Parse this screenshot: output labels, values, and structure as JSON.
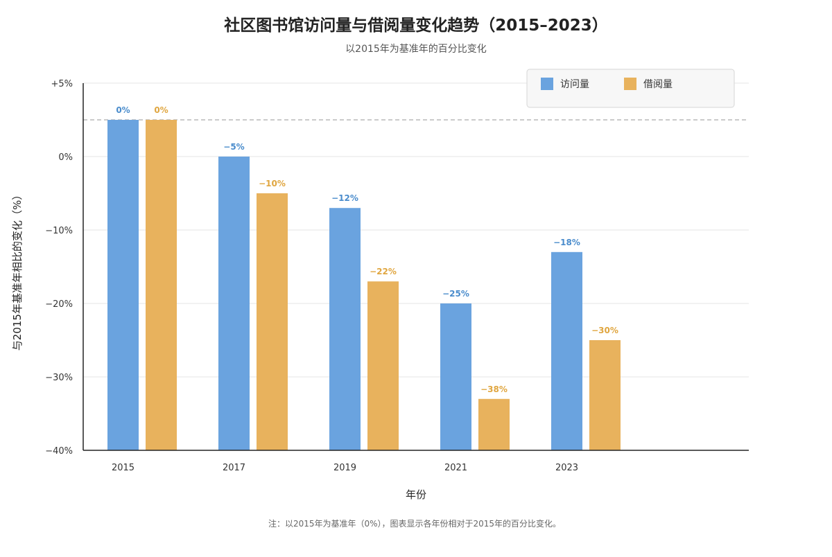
{
  "colors": {
    "visits": "#6aa3df",
    "loans": "#e8b25d",
    "visits_label": "#4a8ccc",
    "loans_label": "#e0a640",
    "grid": "#e5e5e5",
    "axis": "#222222",
    "baseline": "#aaaaaa"
  },
  "chart_data": {
    "type": "bar",
    "title": "社区图书馆访问量与借阅量变化趋势（2015–2023）",
    "subtitle": "以2015年为基准年的百分比变化",
    "xlabel": "年份",
    "ylabel": "与2015年基准年相比的变化（%）",
    "categories": [
      "2015",
      "2017",
      "2019",
      "2021",
      "2023"
    ],
    "series": [
      {
        "name": "访问量",
        "color_key": "visits",
        "values": [
          0,
          -5,
          -12,
          -25,
          -18
        ],
        "labels": [
          "0%",
          "−5%",
          "−12%",
          "−25%",
          "−18%"
        ]
      },
      {
        "name": "借阅量",
        "color_key": "loans",
        "values": [
          0,
          -10,
          -22,
          -38,
          -30
        ],
        "labels": [
          "0%",
          "−10%",
          "−22%",
          "−38%",
          "−30%"
        ]
      }
    ],
    "yticks": [
      {
        "value": 5,
        "label": "+5%"
      },
      {
        "value": 0,
        "label": "0%"
      },
      {
        "value": -10,
        "label": "−10%"
      },
      {
        "value": -20,
        "label": "−20%"
      },
      {
        "value": -30,
        "label": "−30%"
      },
      {
        "value": -40,
        "label": "−40%"
      }
    ],
    "baseline_value": 0,
    "legend_position": "top-right",
    "grid": true,
    "note": "注：以2015年为基准年（0%），图表显示各年份相对于2015年的百分比变化。"
  }
}
